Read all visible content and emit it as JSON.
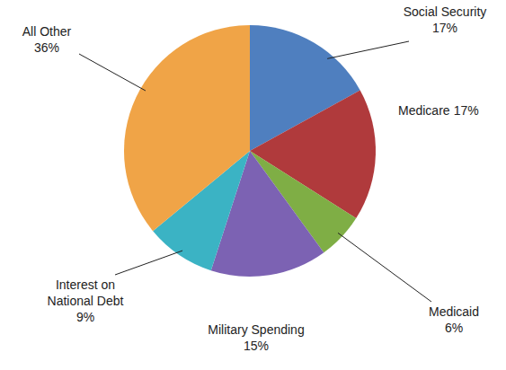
{
  "chart_data": {
    "type": "pie",
    "categories": [
      "Social Security",
      "Medicare",
      "Medicaid",
      "Military Spending",
      "Interest on National Debt",
      "All Other"
    ],
    "values": [
      17,
      17,
      6,
      15,
      9,
      36
    ],
    "value_labels": [
      "17%",
      "17%",
      "6%",
      "15%",
      "9%",
      "36%"
    ],
    "colors": [
      "#4f7fbf",
      "#b03a3c",
      "#7fae45",
      "#7c62b3",
      "#3bb3c4",
      "#f0a447"
    ],
    "data_labels": true
  }
}
